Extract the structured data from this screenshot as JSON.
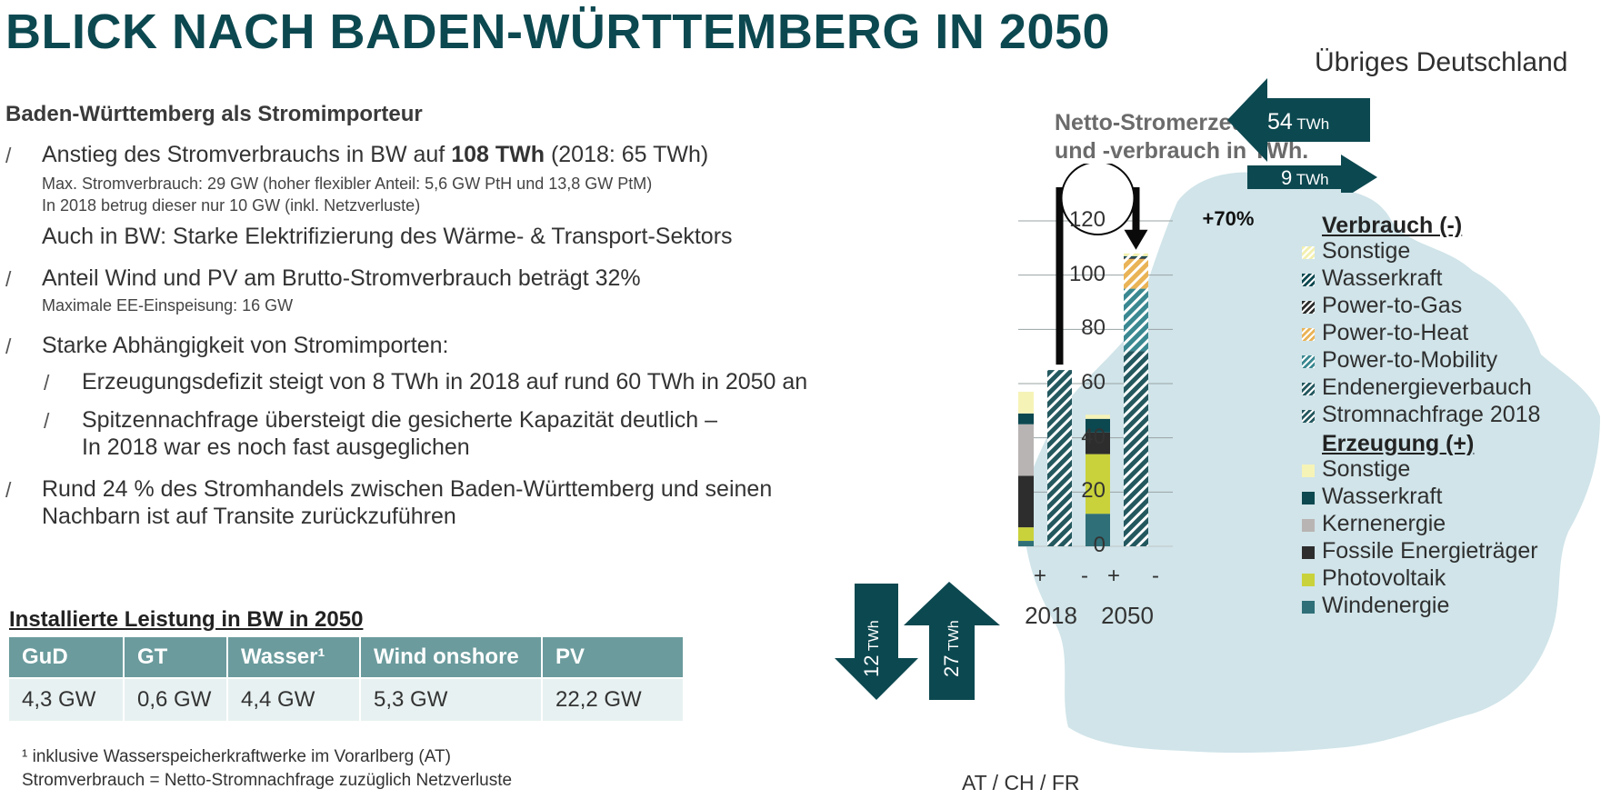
{
  "title": "BLICK NACH BADEN-WÜRTTEMBERG IN 2050",
  "left": {
    "heading": "Baden-Württemberg als Stromimporteur",
    "bullet_marker": "/",
    "b1": {
      "prefix": "Anstieg des Stromverbrauchs in BW auf ",
      "bold": "108 TWh",
      "suffix": " (2018: 65 TWh)",
      "sub1": "Max. Stromverbrauch: 29 GW (hoher flexibler Anteil: 5,6 GW PtH und 13,8 GW PtM)",
      "sub2": "In 2018 betrug dieser nur 10 GW (inkl. Netzverluste)",
      "extra": "Auch in BW: Starke Elektrifizierung des Wärme- & Transport-Sektors"
    },
    "b2": {
      "text": "Anteil Wind und PV am Brutto-Stromverbrauch beträgt 32%",
      "sub": "Maximale EE-Einspeisung: 16 GW"
    },
    "b3": {
      "text": "Starke Abhängigkeit von Stromimporten:",
      "s1": "Erzeugungsdefizit steigt von 8 TWh in 2018 auf rund 60 TWh in 2050 an",
      "s2a": "Spitzennachfrage übersteigt die gesicherte Kapazität deutlich –",
      "s2b": "In 2018 war es noch fast ausgeglichen"
    },
    "b4": {
      "line1": "Rund 24 % des Stromhandels zwischen Baden-Württemberg und seinen",
      "line2": "Nachbarn ist auf Transite zurückzuführen"
    }
  },
  "table": {
    "heading": "Installierte Leistung in BW in 2050",
    "headers": [
      "GuD",
      "GT",
      "Wasser¹",
      "Wind onshore",
      "PV"
    ],
    "values": [
      "4,3 GW",
      "0,6 GW",
      "4,4 GW",
      "5,3 GW",
      "22,2 GW"
    ]
  },
  "footnotes": {
    "f1": "¹ inklusive Wasserspeicherkraftwerke im Vorarlberg (AT)",
    "f2": "Stromverbrauch = Netto-Stromnachfrage zuzüglich Netzverluste"
  },
  "flows": {
    "region_top": "Übriges Deutschland",
    "import_top": {
      "value": "54",
      "unit": "TWh"
    },
    "export_top": {
      "value": "9",
      "unit": "TWh"
    },
    "region_bottom": "AT / CH / FR",
    "export_bottom": {
      "value": "12",
      "unit": "TWh"
    },
    "import_bottom": {
      "value": "27",
      "unit": "TWh"
    }
  },
  "colors": {
    "title": "#0c4850",
    "map": "#d0e4e9",
    "arrow": "#0c4850",
    "table_header": "#6b9b9d",
    "table_row": "#e8f1f1"
  },
  "chart_data": {
    "type": "bar",
    "stacked": true,
    "title": "Netto-Stromerzeugung und -verbrauch in TWh.",
    "ylim": [
      0,
      120
    ],
    "yticks": [
      0,
      20,
      40,
      60,
      80,
      100,
      120
    ],
    "grid": true,
    "years": [
      "2018",
      "2050"
    ],
    "bars": [
      {
        "year": "2018",
        "sign": "+",
        "segments": [
          {
            "name": "Windenergie",
            "value": 2
          },
          {
            "name": "Photovoltaik",
            "value": 5
          },
          {
            "name": "Fossile Energieträger",
            "value": 19
          },
          {
            "name": "Kernenergie",
            "value": 19
          },
          {
            "name": "Wasserkraft",
            "value": 4
          },
          {
            "name": "Sonstige",
            "value": 8
          }
        ]
      },
      {
        "year": "2018",
        "sign": "-",
        "segments": [
          {
            "name": "Stromnachfrage 2018",
            "value": 65
          }
        ]
      },
      {
        "year": "2050",
        "sign": "+",
        "segments": [
          {
            "name": "Windenergie",
            "value": 12
          },
          {
            "name": "Photovoltaik",
            "value": 22
          },
          {
            "name": "Fossile Energieträger",
            "value": 8
          },
          {
            "name": "Wasserkraft",
            "value": 5
          },
          {
            "name": "Sonstige",
            "value": 1.5
          }
        ]
      },
      {
        "year": "2050",
        "sign": "-",
        "segments": [
          {
            "name": "Endenergieverbauch",
            "value": 72
          },
          {
            "name": "Power-to-Mobility",
            "value": 23
          },
          {
            "name": "Power-to-Heat",
            "value": 11
          },
          {
            "name": "Power-to-Gas",
            "value": 0.5
          },
          {
            "name": "Wasserkraft",
            "value": 0.5
          },
          {
            "name": "Sonstige",
            "value": 1
          }
        ]
      }
    ],
    "growth_annotation": "+70%",
    "legend": {
      "verbrauch_header": "Verbrauch (-)",
      "verbrauch": [
        {
          "name": "Sonstige",
          "color": "#f3f0b0",
          "hatched": true
        },
        {
          "name": "Wasserkraft",
          "color": "#0c4850",
          "hatched": true
        },
        {
          "name": "Power-to-Gas",
          "color": "#2d2d2d",
          "hatched": true
        },
        {
          "name": "Power-to-Heat",
          "color": "#e9b356",
          "hatched": true
        },
        {
          "name": "Power-to-Mobility",
          "color": "#3a8891",
          "hatched": true
        },
        {
          "name": "Endenergieverbauch",
          "color": "#24585f",
          "hatched": true
        },
        {
          "name": "Stromnachfrage 2018",
          "color": "#24585f",
          "hatched": true
        }
      ],
      "erzeugung_header": "Erzeugung (+)",
      "erzeugung": [
        {
          "name": "Sonstige",
          "color": "#f6f3b7"
        },
        {
          "name": "Wasserkraft",
          "color": "#0c4850"
        },
        {
          "name": "Kernenergie",
          "color": "#b9b4b4"
        },
        {
          "name": "Fossile Energieträger",
          "color": "#2d2d2d"
        },
        {
          "name": "Photovoltaik",
          "color": "#c9d23a"
        },
        {
          "name": "Windenergie",
          "color": "#2f6f78"
        }
      ]
    }
  }
}
